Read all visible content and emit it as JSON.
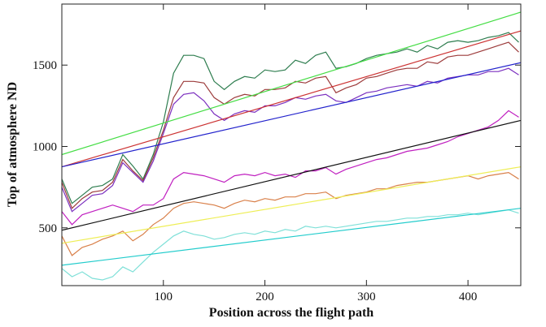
{
  "chart_data": {
    "type": "line",
    "x_label": "Position across the flight path",
    "y_label": "Top of atmosphere ND",
    "xlim": [
      0,
      452
    ],
    "xticks": [
      100,
      200,
      300,
      400
    ],
    "ylim": [
      145,
      1875
    ],
    "yticks": [
      500,
      1000,
      1500
    ],
    "series": [
      {
        "color": "#2e7d4f",
        "x": [
          0,
          10,
          20,
          30,
          40,
          50,
          60,
          70,
          80,
          90,
          100,
          110,
          120,
          130,
          140,
          150,
          160,
          170,
          180,
          190,
          200,
          210,
          220,
          230,
          240,
          250,
          260,
          270,
          280,
          290,
          300,
          310,
          320,
          330,
          340,
          350,
          360,
          370,
          380,
          390,
          400,
          410,
          420,
          430,
          440,
          450
        ],
        "values": [
          800,
          650,
          700,
          750,
          760,
          800,
          950,
          880,
          800,
          950,
          1150,
          1450,
          1560,
          1560,
          1540,
          1400,
          1350,
          1400,
          1430,
          1420,
          1470,
          1460,
          1470,
          1530,
          1510,
          1560,
          1580,
          1480,
          1490,
          1510,
          1540,
          1560,
          1570,
          1580,
          1600,
          1580,
          1620,
          1600,
          1640,
          1650,
          1640,
          1650,
          1670,
          1680,
          1700,
          1640
        ]
      },
      {
        "color": "#9c3b3b",
        "x": [
          0,
          10,
          20,
          30,
          40,
          50,
          60,
          70,
          80,
          90,
          100,
          110,
          120,
          130,
          140,
          150,
          160,
          170,
          180,
          190,
          200,
          210,
          220,
          230,
          240,
          250,
          260,
          270,
          280,
          290,
          300,
          310,
          320,
          330,
          340,
          350,
          360,
          370,
          380,
          390,
          400,
          410,
          420,
          430,
          440,
          450
        ],
        "values": [
          780,
          620,
          680,
          720,
          730,
          780,
          920,
          850,
          790,
          930,
          1100,
          1300,
          1400,
          1400,
          1390,
          1300,
          1260,
          1300,
          1320,
          1310,
          1350,
          1350,
          1360,
          1400,
          1390,
          1420,
          1430,
          1330,
          1360,
          1380,
          1420,
          1430,
          1450,
          1470,
          1480,
          1480,
          1520,
          1510,
          1550,
          1560,
          1560,
          1580,
          1600,
          1620,
          1640,
          1580
        ]
      },
      {
        "color": "#7b2fbf",
        "x": [
          0,
          10,
          20,
          30,
          40,
          50,
          60,
          70,
          80,
          90,
          100,
          110,
          120,
          130,
          140,
          150,
          160,
          170,
          180,
          190,
          200,
          210,
          220,
          230,
          240,
          250,
          260,
          270,
          280,
          290,
          300,
          310,
          320,
          330,
          340,
          350,
          360,
          370,
          380,
          390,
          400,
          410,
          420,
          430,
          440,
          450
        ],
        "values": [
          750,
          600,
          650,
          700,
          710,
          760,
          900,
          840,
          780,
          910,
          1080,
          1260,
          1320,
          1330,
          1280,
          1200,
          1160,
          1200,
          1220,
          1210,
          1250,
          1250,
          1270,
          1300,
          1290,
          1310,
          1320,
          1280,
          1270,
          1300,
          1330,
          1340,
          1360,
          1370,
          1380,
          1370,
          1400,
          1390,
          1420,
          1430,
          1440,
          1440,
          1460,
          1460,
          1480,
          1440
        ]
      },
      {
        "color": "#c020c0",
        "x": [
          0,
          10,
          20,
          30,
          40,
          50,
          60,
          70,
          80,
          90,
          100,
          110,
          120,
          130,
          140,
          150,
          160,
          170,
          180,
          190,
          200,
          210,
          220,
          230,
          240,
          250,
          260,
          270,
          280,
          290,
          300,
          310,
          320,
          330,
          340,
          350,
          360,
          370,
          380,
          390,
          400,
          410,
          420,
          430,
          440,
          450
        ],
        "values": [
          600,
          520,
          580,
          600,
          620,
          640,
          620,
          600,
          640,
          640,
          680,
          800,
          840,
          830,
          820,
          800,
          780,
          820,
          830,
          820,
          840,
          820,
          830,
          810,
          850,
          850,
          870,
          830,
          860,
          880,
          900,
          920,
          930,
          950,
          970,
          980,
          990,
          1010,
          1030,
          1060,
          1080,
          1100,
          1120,
          1160,
          1220,
          1180
        ]
      },
      {
        "color": "#d9804a",
        "x": [
          0,
          10,
          20,
          30,
          40,
          50,
          60,
          70,
          80,
          90,
          100,
          110,
          120,
          130,
          140,
          150,
          160,
          170,
          180,
          190,
          200,
          210,
          220,
          230,
          240,
          250,
          260,
          270,
          280,
          290,
          300,
          310,
          320,
          330,
          340,
          350,
          360,
          370,
          380,
          390,
          400,
          410,
          420,
          430,
          440,
          450
        ],
        "values": [
          450,
          330,
          380,
          400,
          430,
          450,
          480,
          420,
          460,
          520,
          560,
          620,
          650,
          660,
          650,
          640,
          620,
          650,
          670,
          660,
          680,
          670,
          690,
          690,
          710,
          710,
          720,
          680,
          700,
          710,
          720,
          740,
          740,
          760,
          770,
          780,
          780,
          790,
          800,
          810,
          820,
          800,
          820,
          830,
          840,
          800
        ]
      },
      {
        "color": "#7fe0d8",
        "x": [
          0,
          10,
          20,
          30,
          40,
          50,
          60,
          70,
          80,
          90,
          100,
          110,
          120,
          130,
          140,
          150,
          160,
          170,
          180,
          190,
          200,
          210,
          220,
          230,
          240,
          250,
          260,
          270,
          280,
          290,
          300,
          310,
          320,
          330,
          340,
          350,
          360,
          370,
          380,
          390,
          400,
          410,
          420,
          430,
          440,
          450
        ],
        "values": [
          250,
          200,
          230,
          190,
          180,
          200,
          260,
          230,
          290,
          350,
          400,
          450,
          480,
          460,
          450,
          430,
          440,
          460,
          470,
          460,
          480,
          470,
          490,
          480,
          510,
          500,
          510,
          500,
          510,
          520,
          530,
          540,
          540,
          550,
          560,
          560,
          570,
          570,
          580,
          580,
          590,
          580,
          590,
          600,
          610,
          590
        ]
      },
      {
        "color": "#44dd44",
        "x": [
          0,
          452
        ],
        "values": [
          950,
          1825
        ]
      },
      {
        "color": "#cc3333",
        "x": [
          0,
          452
        ],
        "values": [
          875,
          1710
        ]
      },
      {
        "color": "#2222cc",
        "x": [
          0,
          452
        ],
        "values": [
          875,
          1515
        ]
      },
      {
        "color": "#111111",
        "x": [
          0,
          452
        ],
        "values": [
          485,
          1160
        ]
      },
      {
        "color": "#eeee55",
        "x": [
          0,
          452
        ],
        "values": [
          405,
          875
        ]
      },
      {
        "color": "#22cccc",
        "x": [
          0,
          452
        ],
        "values": [
          270,
          620
        ]
      }
    ]
  }
}
